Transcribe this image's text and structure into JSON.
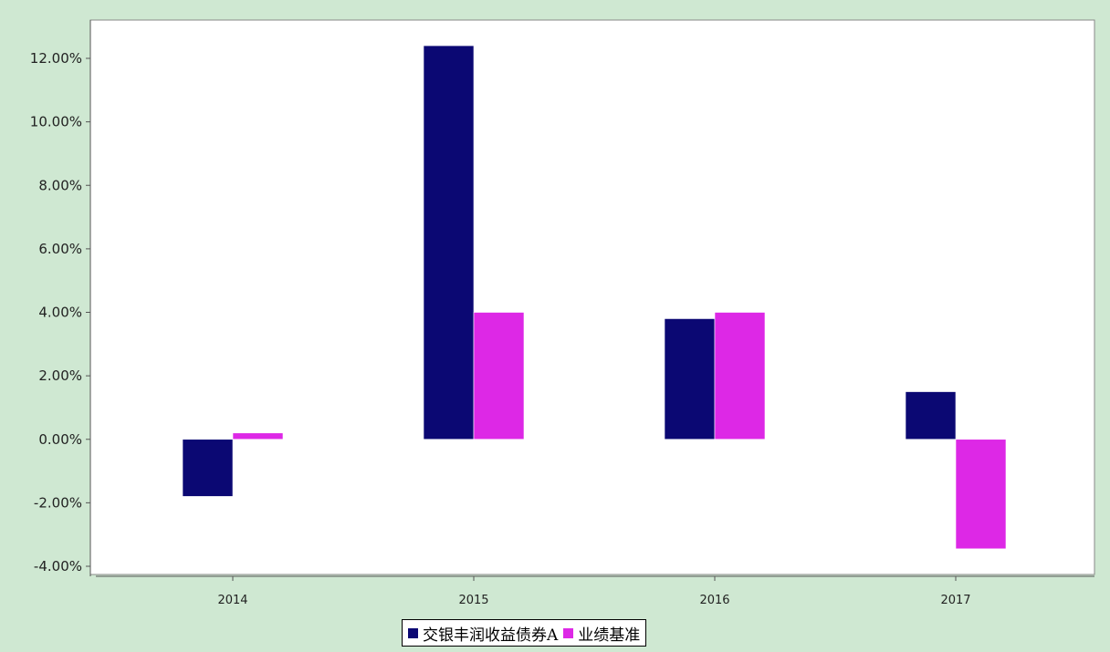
{
  "chart_data": {
    "type": "bar",
    "categories": [
      "2014",
      "2015",
      "2016",
      "2017"
    ],
    "series": [
      {
        "name": "交银丰润收益债券A",
        "color": "#0b0873",
        "values": [
          -1.8,
          12.4,
          3.8,
          1.5
        ]
      },
      {
        "name": "业绩基准",
        "color": "#dd28e6",
        "values": [
          0.2,
          4.0,
          4.0,
          -3.45
        ]
      }
    ],
    "ylim": [
      -4.0,
      12.0
    ],
    "yticks": [
      "12.00%",
      "10.00%",
      "8.00%",
      "6.00%",
      "4.00%",
      "2.00%",
      "0.00%",
      "-2.00%",
      "-4.00%"
    ],
    "ytick_values": [
      12,
      10,
      8,
      6,
      4,
      2,
      0,
      -2,
      -4
    ],
    "ylabel_unit": "%",
    "grid": false,
    "legend_position": "bottom-center"
  }
}
